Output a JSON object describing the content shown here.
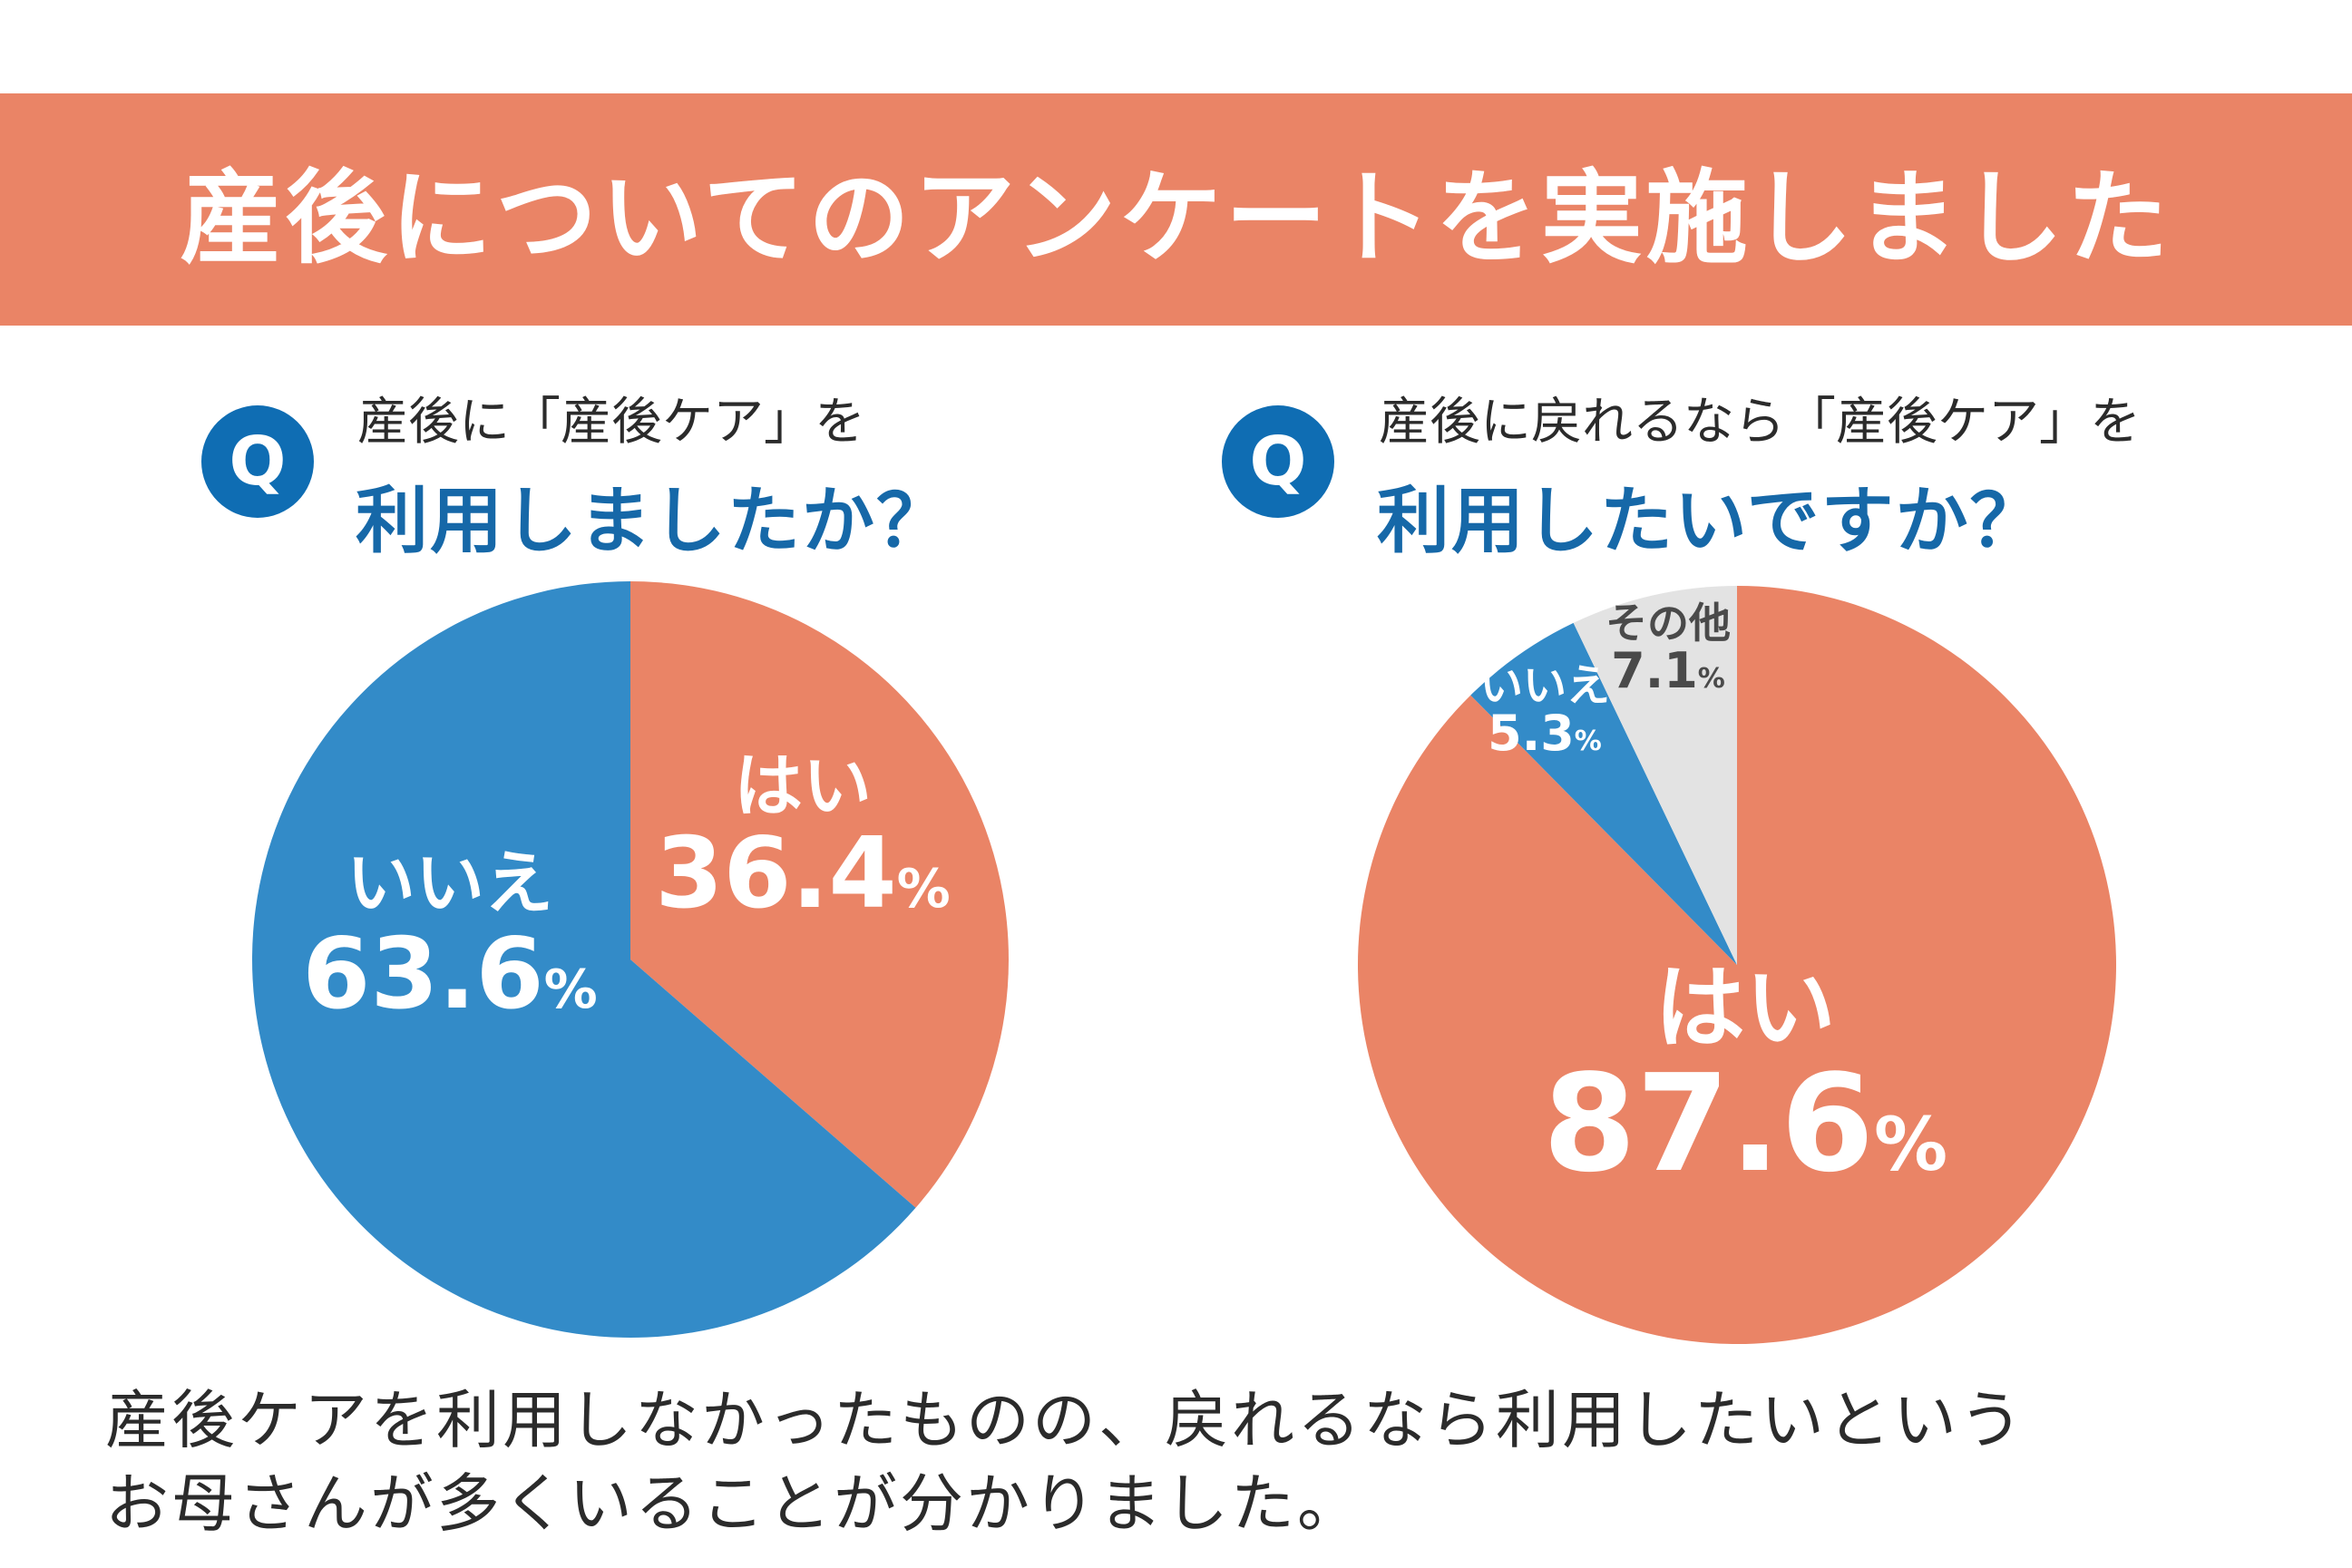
{
  "title": "産後についてのアンケートを実施しました",
  "colors": {
    "banner": "#EA8466",
    "yes": "#EA8466",
    "no": "#338BC8",
    "other": "#E3E3E3",
    "question_blue": "#1668A8",
    "q_badge": "#0F6DB3"
  },
  "questions": [
    {
      "badge": "Q",
      "line1": "産後に「産後ケア」を",
      "line2": "利用しましたか？"
    },
    {
      "badge": "Q",
      "line1": "産後に戻れるなら「産後ケア」を",
      "line2": "利用したいですか？"
    }
  ],
  "chart_data": [
    {
      "type": "pie",
      "title": "産後に「産後ケア」を利用しましたか？",
      "slices": [
        {
          "label": "はい",
          "value": 36.4,
          "display": "36.4",
          "unit": "%",
          "color": "#EA8466"
        },
        {
          "label": "いいえ",
          "value": 63.6,
          "display": "63.6",
          "unit": "%",
          "color": "#338BC8"
        }
      ]
    },
    {
      "type": "pie",
      "title": "産後に戻れるなら「産後ケア」を利用したいですか？",
      "slices": [
        {
          "label": "はい",
          "value": 87.6,
          "display": "87.6",
          "unit": "%",
          "color": "#EA8466"
        },
        {
          "label": "いいえ",
          "value": 5.3,
          "display": "5.3",
          "unit": "%",
          "color": "#338BC8"
        },
        {
          "label": "その他",
          "value": 7.1,
          "display": "7.1",
          "unit": "%",
          "color": "#E3E3E3"
        }
      ]
    }
  ],
  "footer": {
    "line1": "産後ケアを利用しなかったものの、戻れるなら利用したいという",
    "line2": "お母さんが多くいることが分かりました。"
  }
}
